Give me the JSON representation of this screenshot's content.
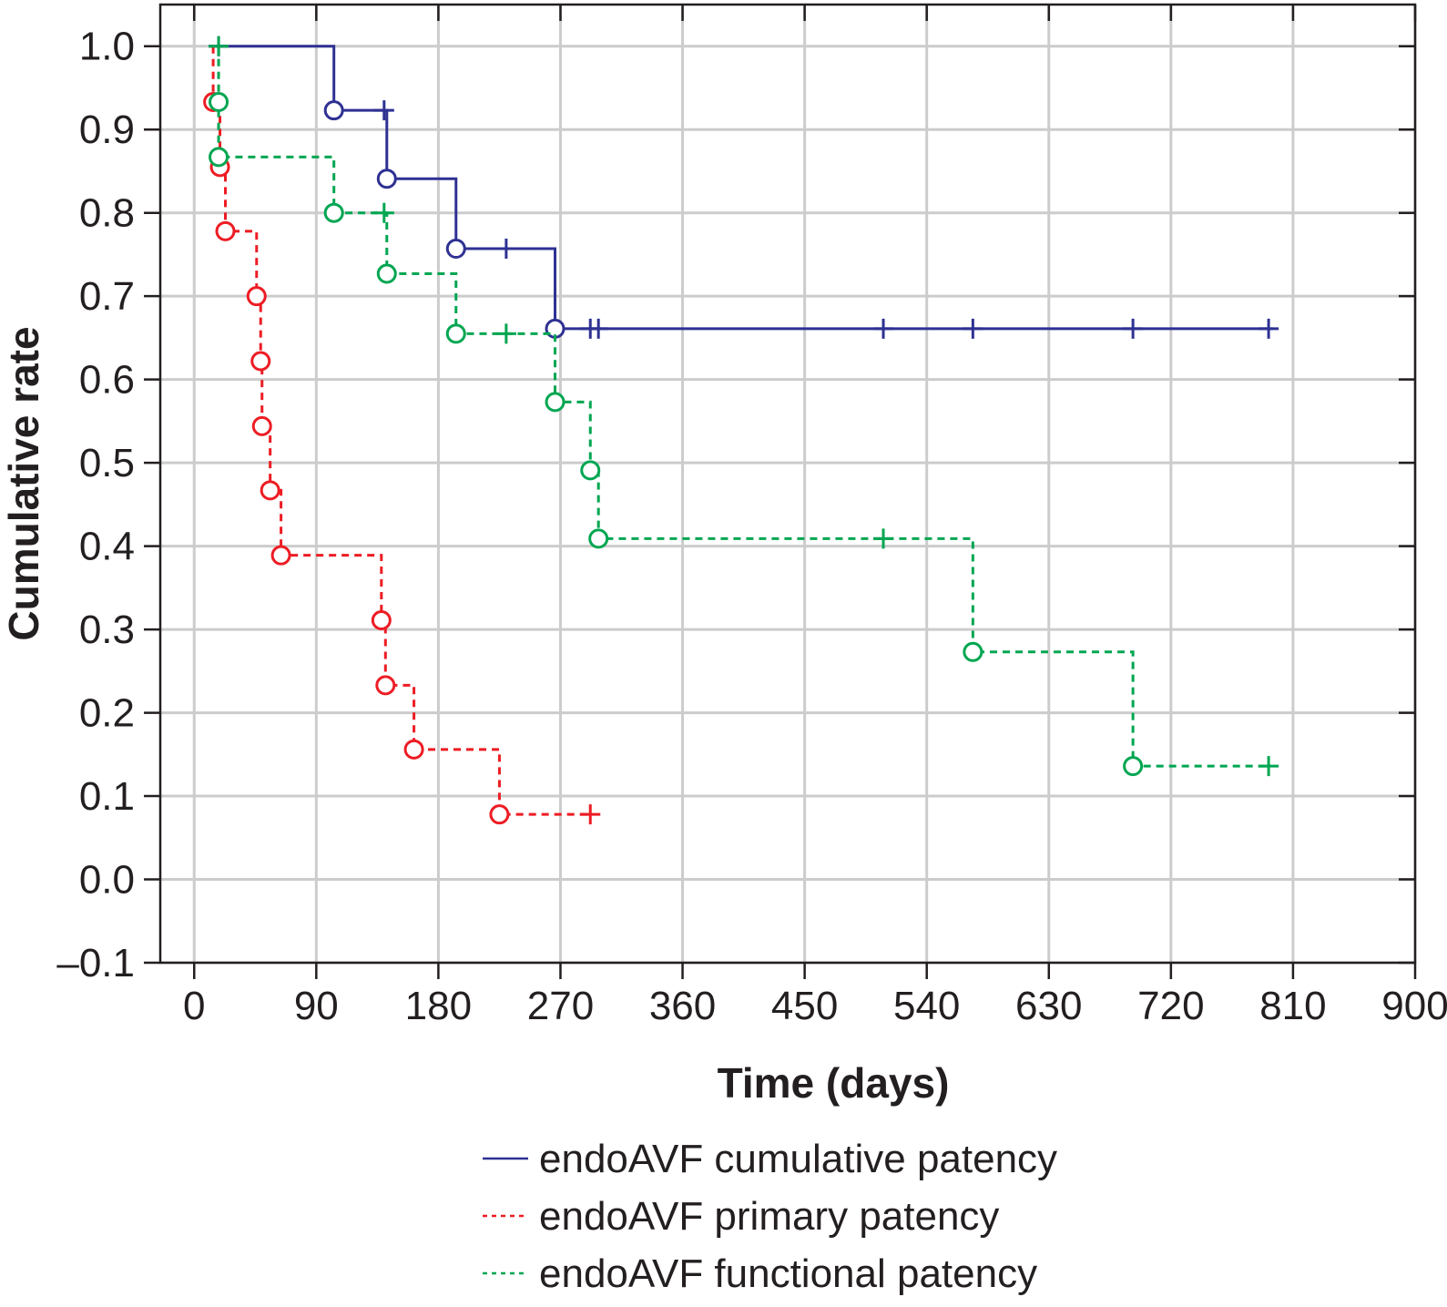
{
  "chart_data": {
    "type": "line",
    "title": "",
    "xlabel": "Time (days)",
    "ylabel": "Cumulative rate",
    "xlim": [
      -25,
      900
    ],
    "ylim": [
      -0.1,
      1.05
    ],
    "x_ticks": [
      0,
      90,
      180,
      270,
      360,
      450,
      540,
      630,
      720,
      810,
      900
    ],
    "x_tick_labels": [
      "0",
      "90",
      "180",
      "270",
      "360",
      "450",
      "540",
      "630",
      "720",
      "810",
      "900"
    ],
    "y_ticks": [
      -0.1,
      0.0,
      0.1,
      0.2,
      0.3,
      0.4,
      0.5,
      0.6,
      0.7,
      0.8,
      0.9,
      1.0
    ],
    "y_tick_labels": [
      "–0.1",
      "0.0",
      "0.1",
      "0.2",
      "0.3",
      "0.4",
      "0.5",
      "0.6",
      "0.7",
      "0.8",
      "0.9",
      "1.0"
    ],
    "grid": true,
    "legend_position": "bottom-center",
    "series": [
      {
        "name": "endoAVF cumulative patency",
        "color": "#2e3192",
        "line_style": "solid",
        "steps": [
          [
            18,
            1.0
          ],
          [
            103,
            0.923
          ],
          [
            142,
            0.841
          ],
          [
            193,
            0.757
          ],
          [
            266,
            0.661
          ],
          [
            795,
            0.661
          ]
        ],
        "events": [
          [
            103,
            0.923
          ],
          [
            142,
            0.841
          ],
          [
            193,
            0.757
          ],
          [
            266,
            0.661
          ]
        ],
        "censored": [
          [
            18,
            1.0
          ],
          [
            140,
            0.923
          ],
          [
            230,
            0.757
          ],
          [
            292,
            0.661
          ],
          [
            298,
            0.661
          ],
          [
            508,
            0.661
          ],
          [
            574,
            0.661
          ],
          [
            692,
            0.661
          ],
          [
            792,
            0.661
          ]
        ]
      },
      {
        "name": "endoAVF primary patency",
        "color": "#ed1c24",
        "line_style": "dashed",
        "steps": [
          [
            14,
            1.0
          ],
          [
            14,
            0.933
          ],
          [
            19,
            0.855
          ],
          [
            23,
            0.778
          ],
          [
            46,
            0.7
          ],
          [
            49,
            0.622
          ],
          [
            50,
            0.544
          ],
          [
            56,
            0.467
          ],
          [
            64,
            0.389
          ],
          [
            138,
            0.311
          ],
          [
            141,
            0.233
          ],
          [
            162,
            0.156
          ],
          [
            225,
            0.078
          ],
          [
            292,
            0.078
          ]
        ],
        "events": [
          [
            14,
            0.933
          ],
          [
            19,
            0.855
          ],
          [
            23,
            0.778
          ],
          [
            46,
            0.7
          ],
          [
            49,
            0.622
          ],
          [
            50,
            0.544
          ],
          [
            56,
            0.467
          ],
          [
            64,
            0.389
          ],
          [
            138,
            0.311
          ],
          [
            141,
            0.233
          ],
          [
            162,
            0.156
          ],
          [
            225,
            0.078
          ]
        ],
        "censored": [
          [
            292,
            0.078
          ]
        ]
      },
      {
        "name": "endoAVF functional patency",
        "color": "#00a651",
        "line_style": "dashed",
        "steps": [
          [
            18,
            1.0
          ],
          [
            18,
            0.933
          ],
          [
            18,
            0.867
          ],
          [
            103,
            0.8
          ],
          [
            142,
            0.727
          ],
          [
            193,
            0.655
          ],
          [
            266,
            0.573
          ],
          [
            292,
            0.491
          ],
          [
            298,
            0.409
          ],
          [
            574,
            0.273
          ],
          [
            692,
            0.136
          ],
          [
            792,
            0.136
          ]
        ],
        "events": [
          [
            18,
            0.933
          ],
          [
            18,
            0.867
          ],
          [
            103,
            0.8
          ],
          [
            142,
            0.727
          ],
          [
            193,
            0.655
          ],
          [
            266,
            0.573
          ],
          [
            292,
            0.491
          ],
          [
            298,
            0.409
          ],
          [
            574,
            0.273
          ],
          [
            692,
            0.136
          ]
        ],
        "censored": [
          [
            18,
            1.0
          ],
          [
            140,
            0.8
          ],
          [
            230,
            0.655
          ],
          [
            508,
            0.409
          ],
          [
            792,
            0.136
          ]
        ]
      }
    ]
  }
}
